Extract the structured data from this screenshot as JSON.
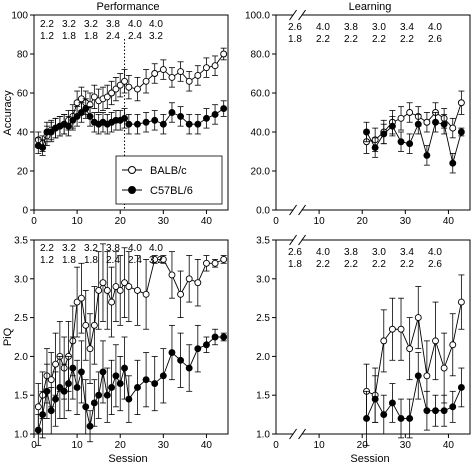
{
  "titles": {
    "performance": "Performance",
    "learning": "Learning"
  },
  "axis_labels": {
    "accuracy": "Accuracy",
    "pi": "PiQ",
    "session": "Session"
  },
  "legend": {
    "balb": "BALB/c",
    "c57": "C57BL/6"
  },
  "annotations": {
    "perf_row1": [
      "2.2",
      "3.2",
      "3.2",
      "3.8",
      "4.0",
      "4.0"
    ],
    "perf_row2": [
      "1.2",
      "1.8",
      "1.8",
      "2.4",
      "2.4",
      "3.2"
    ],
    "learn_row1": [
      "2.6",
      "4.0",
      "3.8",
      "3.0",
      "3.4",
      "4.0"
    ],
    "learn_row2": [
      "1.8",
      "2.2",
      "2.2",
      "2.2",
      "2.2",
      "2.6"
    ]
  },
  "chart_data": [
    {
      "id": "perf-accuracy",
      "type": "line",
      "ylabel": "Accuracy",
      "xlim": [
        0,
        45
      ],
      "ylim": [
        0,
        100
      ],
      "xticks": [
        "0",
        "10",
        "20",
        "30",
        "40"
      ],
      "yticks": [
        "0",
        "20",
        "40",
        "60",
        "80",
        "100"
      ],
      "series": [
        {
          "name": "BALB/c",
          "x": [
            1,
            2,
            3,
            4,
            5,
            6,
            7,
            8,
            9,
            10,
            11,
            12,
            13,
            14,
            15,
            16,
            17,
            18,
            19,
            20,
            21,
            22,
            24,
            26,
            28,
            30,
            32,
            34,
            36,
            38,
            40,
            42,
            44
          ],
          "y": [
            36,
            34,
            38,
            41,
            42,
            43,
            44,
            46,
            48,
            55,
            57,
            55,
            54,
            58,
            56,
            57,
            58,
            60,
            62,
            64,
            66,
            63,
            62,
            66,
            70,
            72,
            68,
            71,
            66,
            69,
            73,
            74,
            80
          ],
          "yerr": [
            4,
            4,
            5,
            5,
            5,
            5,
            5,
            5,
            6,
            6,
            6,
            6,
            6,
            6,
            6,
            6,
            6,
            6,
            6,
            6,
            6,
            6,
            6,
            6,
            5,
            5,
            5,
            5,
            5,
            5,
            5,
            5,
            3
          ]
        },
        {
          "name": "C57BL/6",
          "x": [
            1,
            2,
            3,
            4,
            5,
            6,
            7,
            8,
            9,
            10,
            11,
            12,
            13,
            14,
            15,
            16,
            17,
            18,
            19,
            20,
            21,
            22,
            24,
            26,
            28,
            30,
            32,
            34,
            36,
            38,
            40,
            42,
            44
          ],
          "y": [
            33,
            32,
            40,
            40,
            42,
            43,
            44,
            43,
            46,
            48,
            50,
            52,
            48,
            45,
            44,
            45,
            44,
            45,
            46,
            46,
            47,
            44,
            44,
            45,
            46,
            44,
            50,
            48,
            44,
            44,
            47,
            49,
            52
          ],
          "yerr": [
            4,
            4,
            5,
            5,
            5,
            5,
            5,
            5,
            5,
            5,
            5,
            5,
            5,
            5,
            5,
            5,
            5,
            5,
            5,
            5,
            5,
            5,
            5,
            5,
            5,
            5,
            5,
            5,
            5,
            5,
            5,
            5,
            4
          ]
        }
      ]
    },
    {
      "id": "learn-accuracy",
      "type": "line",
      "xlim": [
        0,
        45
      ],
      "ylim": [
        0,
        100
      ],
      "xticks": [
        "0",
        "10",
        "20",
        "30",
        "40"
      ],
      "yticks": [
        "0.0",
        "20.0",
        "40.0",
        "60.0",
        "80.0",
        "100.0"
      ],
      "series": [
        {
          "name": "BALB/c",
          "x": [
            21,
            23,
            25,
            27,
            29,
            31,
            33,
            35,
            37,
            39,
            41,
            43
          ],
          "y": [
            35,
            36,
            40,
            45,
            47,
            50,
            48,
            45,
            50,
            47,
            42,
            55
          ],
          "yerr": [
            6,
            6,
            6,
            6,
            6,
            5,
            5,
            5,
            5,
            5,
            5,
            6
          ]
        },
        {
          "name": "C57BL/6",
          "x": [
            21,
            23,
            25,
            27,
            29,
            31,
            33,
            35,
            37,
            39,
            41,
            43
          ],
          "y": [
            40,
            32,
            39,
            43,
            35,
            34,
            44,
            28,
            45,
            44,
            24,
            40
          ],
          "yerr": [
            5,
            5,
            5,
            5,
            5,
            5,
            5,
            5,
            5,
            5,
            5,
            2
          ]
        }
      ]
    },
    {
      "id": "perf-pi",
      "type": "line",
      "ylabel": "PiQ",
      "xlim": [
        0,
        45
      ],
      "ylim": [
        1.0,
        3.5
      ],
      "xticks": [
        "0",
        "10",
        "20",
        "30",
        "40"
      ],
      "yticks": [
        "1.0",
        "1.5",
        "2.0",
        "2.5",
        "3.0",
        "3.5"
      ],
      "series": [
        {
          "name": "BALB/c",
          "x": [
            1,
            2,
            3,
            4,
            5,
            6,
            7,
            8,
            9,
            10,
            11,
            12,
            13,
            14,
            15,
            16,
            17,
            18,
            19,
            20,
            21,
            22,
            24,
            26,
            28,
            30,
            32,
            34,
            36,
            38,
            40,
            42,
            44
          ],
          "y": [
            1.35,
            1.5,
            1.75,
            1.7,
            1.9,
            2.0,
            1.85,
            2.0,
            2.2,
            2.7,
            2.75,
            2.4,
            2.1,
            2.4,
            2.85,
            2.95,
            2.85,
            2.7,
            2.9,
            2.85,
            2.95,
            2.9,
            2.85,
            2.8,
            3.25,
            3.25,
            3.05,
            2.8,
            3.0,
            2.95,
            3.2,
            3.2,
            3.25
          ],
          "yerr": [
            0.3,
            0.3,
            0.35,
            0.35,
            0.4,
            0.45,
            0.4,
            0.45,
            0.45,
            0.45,
            0.45,
            0.45,
            0.45,
            0.5,
            0.5,
            0.5,
            0.5,
            0.45,
            0.45,
            0.45,
            0.45,
            0.45,
            0.45,
            0.45,
            0.05,
            0.05,
            0.3,
            0.3,
            0.3,
            0.3,
            0.1,
            0.05,
            0.05
          ]
        },
        {
          "name": "C57BL/6",
          "x": [
            1,
            2,
            3,
            4,
            5,
            6,
            7,
            8,
            9,
            10,
            11,
            12,
            13,
            14,
            15,
            16,
            17,
            18,
            19,
            20,
            21,
            22,
            24,
            26,
            28,
            30,
            32,
            34,
            36,
            38,
            40,
            42,
            44
          ],
          "y": [
            1.05,
            1.25,
            1.55,
            1.3,
            1.45,
            1.6,
            1.55,
            1.65,
            1.85,
            1.6,
            1.8,
            1.35,
            1.1,
            1.4,
            1.5,
            1.8,
            1.5,
            1.6,
            1.75,
            1.65,
            1.85,
            1.45,
            1.6,
            1.7,
            1.65,
            1.75,
            2.05,
            1.95,
            1.85,
            2.1,
            2.15,
            2.25,
            2.25
          ],
          "yerr": [
            0.2,
            0.3,
            0.35,
            0.3,
            0.35,
            0.4,
            0.35,
            0.35,
            0.4,
            0.35,
            0.4,
            0.35,
            0.2,
            0.3,
            0.3,
            0.4,
            0.35,
            0.35,
            0.4,
            0.35,
            0.4,
            0.3,
            0.35,
            0.35,
            0.35,
            0.35,
            0.35,
            0.35,
            0.3,
            0.3,
            0.1,
            0.1,
            0.05
          ]
        }
      ]
    },
    {
      "id": "learn-pi",
      "type": "line",
      "xlim": [
        0,
        45
      ],
      "ylim": [
        1.0,
        3.5
      ],
      "xticks": [
        "0",
        "10",
        "20",
        "30",
        "40"
      ],
      "yticks": [
        "1.0",
        "1.5",
        "2.0",
        "2.5",
        "3.0",
        "3.5"
      ],
      "series": [
        {
          "name": "BALB/c",
          "x": [
            21,
            23,
            25,
            27,
            29,
            31,
            33,
            35,
            37,
            39,
            41,
            43
          ],
          "y": [
            1.55,
            1.5,
            2.2,
            2.35,
            2.35,
            2.1,
            2.5,
            1.75,
            2.2,
            1.85,
            2.15,
            2.7
          ],
          "yerr": [
            0.35,
            0.35,
            0.4,
            0.4,
            0.4,
            0.4,
            0.4,
            0.45,
            0.5,
            0.45,
            0.4,
            0.35
          ]
        },
        {
          "name": "C57BL/6",
          "x": [
            21,
            23,
            25,
            27,
            29,
            31,
            33,
            35,
            37,
            39,
            41,
            43
          ],
          "y": [
            1.2,
            1.45,
            1.25,
            1.4,
            1.2,
            1.2,
            1.75,
            1.3,
            1.3,
            1.3,
            1.35,
            1.6
          ],
          "yerr": [
            0.35,
            0.3,
            0.25,
            0.25,
            0.25,
            0.25,
            0.3,
            0.25,
            0.2,
            0.2,
            0.2,
            0.25
          ]
        }
      ]
    }
  ]
}
